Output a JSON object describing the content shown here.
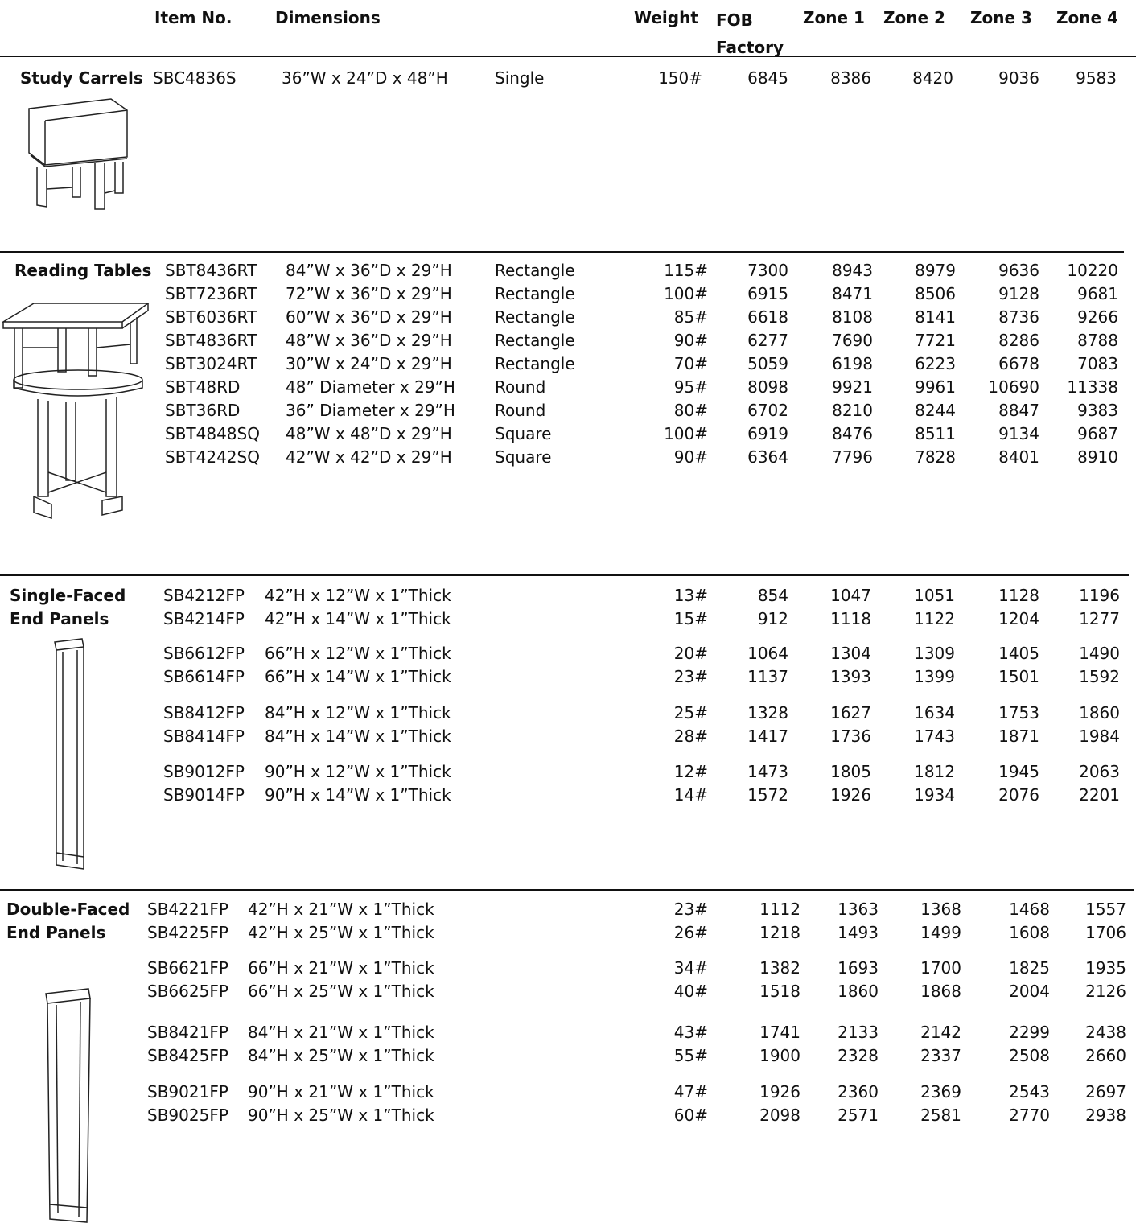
{
  "header": {
    "item_no": "Item No.",
    "dimensions": "Dimensions",
    "weight": "Weight",
    "fob": "FOB\nFactory",
    "zones": [
      "Zone 1",
      "Zone 2",
      "Zone 3",
      "Zone 4"
    ]
  },
  "sections": [
    {
      "title": "Study Carrels",
      "rows": [
        {
          "item": "SBC4836S",
          "dimensions": "36”W x 24”D x 48”H",
          "shape": "Single",
          "weight": "150#",
          "prices": [
            6845,
            8386,
            8420,
            9036,
            9583
          ]
        }
      ]
    },
    {
      "title": "Reading Tables",
      "rows": [
        {
          "item": "SBT8436RT",
          "dimensions": "84”W x 36”D x 29”H",
          "shape": "Rectangle",
          "weight": "115#",
          "prices": [
            7300,
            8943,
            8979,
            9636,
            10220
          ]
        },
        {
          "item": "SBT7236RT",
          "dimensions": "72”W x 36”D x 29”H",
          "shape": "Rectangle",
          "weight": "100#",
          "prices": [
            6915,
            8471,
            8506,
            9128,
            9681
          ]
        },
        {
          "item": "SBT6036RT",
          "dimensions": "60”W x 36”D x 29”H",
          "shape": "Rectangle",
          "weight": "85#",
          "prices": [
            6618,
            8108,
            8141,
            8736,
            9266
          ]
        },
        {
          "item": "SBT4836RT",
          "dimensions": "48”W x 36”D x 29”H",
          "shape": "Rectangle",
          "weight": "90#",
          "prices": [
            6277,
            7690,
            7721,
            8286,
            8788
          ]
        },
        {
          "item": "SBT3024RT",
          "dimensions": "30”W x 24”D x 29”H",
          "shape": "Rectangle",
          "weight": "70#",
          "prices": [
            5059,
            6198,
            6223,
            6678,
            7083
          ]
        },
        {
          "item": "SBT48RD",
          "dimensions": "48” Diameter x 29”H",
          "shape": "Round",
          "weight": "95#",
          "prices": [
            8098,
            9921,
            9961,
            10690,
            11338
          ]
        },
        {
          "item": "SBT36RD",
          "dimensions": "36” Diameter x 29”H",
          "shape": "Round",
          "weight": "80#",
          "prices": [
            6702,
            8210,
            8244,
            8847,
            9383
          ]
        },
        {
          "item": "SBT4848SQ",
          "dimensions": "48”W x 48”D x 29”H",
          "shape": "Square",
          "weight": "100#",
          "prices": [
            6919,
            8476,
            8511,
            9134,
            9687
          ]
        },
        {
          "item": "SBT4242SQ",
          "dimensions": "42”W x 42”D x 29”H",
          "shape": "Square",
          "weight": "90#",
          "prices": [
            6364,
            7796,
            7828,
            8401,
            8910
          ]
        }
      ]
    },
    {
      "title": "Single-Faced\nEnd Panels",
      "rows": [
        {
          "item": "SB4212FP",
          "dimensions": "42”H x 12”W x 1”Thick",
          "weight": "13#",
          "prices": [
            854,
            1047,
            1051,
            1128,
            1196
          ]
        },
        {
          "item": "SB4214FP",
          "dimensions": "42”H x 14”W x 1”Thick",
          "weight": "15#",
          "prices": [
            912,
            1118,
            1122,
            1204,
            1277
          ]
        },
        {
          "item": "SB6612FP",
          "dimensions": "66”H x 12”W x 1”Thick",
          "weight": "20#",
          "prices": [
            1064,
            1304,
            1309,
            1405,
            1490
          ]
        },
        {
          "item": "SB6614FP",
          "dimensions": "66”H x 14”W x 1”Thick",
          "weight": "23#",
          "prices": [
            1137,
            1393,
            1399,
            1501,
            1592
          ]
        },
        {
          "item": "SB8412FP",
          "dimensions": "84”H x 12”W x 1”Thick",
          "weight": "25#",
          "prices": [
            1328,
            1627,
            1634,
            1753,
            1860
          ]
        },
        {
          "item": "SB8414FP",
          "dimensions": "84”H x 14”W x 1”Thick",
          "weight": "28#",
          "prices": [
            1417,
            1736,
            1743,
            1871,
            1984
          ]
        },
        {
          "item": "SB9012FP",
          "dimensions": "90”H x 12”W x 1”Thick",
          "weight": "12#",
          "prices": [
            1473,
            1805,
            1812,
            1945,
            2063
          ]
        },
        {
          "item": "SB9014FP",
          "dimensions": "90”H x 14”W x 1”Thick",
          "weight": "14#",
          "prices": [
            1572,
            1926,
            1934,
            2076,
            2201
          ]
        }
      ]
    },
    {
      "title": "Double-Faced\nEnd Panels",
      "rows": [
        {
          "item": "SB4221FP",
          "dimensions": "42”H x 21”W x 1”Thick",
          "weight": "23#",
          "prices": [
            1112,
            1363,
            1368,
            1468,
            1557
          ]
        },
        {
          "item": "SB4225FP",
          "dimensions": "42”H x 25”W x 1”Thick",
          "weight": "26#",
          "prices": [
            1218,
            1493,
            1499,
            1608,
            1706
          ]
        },
        {
          "item": "SB6621FP",
          "dimensions": "66”H x 21”W x 1”Thick",
          "weight": "34#",
          "prices": [
            1382,
            1693,
            1700,
            1825,
            1935
          ]
        },
        {
          "item": "SB6625FP",
          "dimensions": "66”H x 25”W x 1”Thick",
          "weight": "40#",
          "prices": [
            1518,
            1860,
            1868,
            2004,
            2126
          ]
        },
        {
          "item": "SB8421FP",
          "dimensions": "84”H x 21”W x 1”Thick",
          "weight": "43#",
          "prices": [
            1741,
            2133,
            2142,
            2299,
            2438
          ]
        },
        {
          "item": "SB8425FP",
          "dimensions": "84”H x 25”W x 1”Thick",
          "weight": "55#",
          "prices": [
            1900,
            2328,
            2337,
            2508,
            2660
          ]
        },
        {
          "item": "SB9021FP",
          "dimensions": "90”H x 21”W x 1”Thick",
          "weight": "47#",
          "prices": [
            1926,
            2360,
            2369,
            2543,
            2697
          ]
        },
        {
          "item": "SB9025FP",
          "dimensions": "90”H x 25”W x 1”Thick",
          "weight": "60#",
          "prices": [
            2098,
            2571,
            2581,
            2770,
            2938
          ]
        }
      ]
    }
  ]
}
